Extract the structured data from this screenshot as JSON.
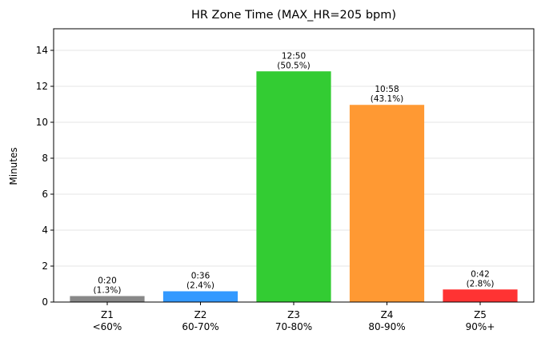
{
  "chart_data": {
    "type": "bar",
    "title": "HR Zone Time (MAX_HR=205 bpm)",
    "xlabel": "",
    "ylabel": "Minutes",
    "ylim": [
      0,
      15.2
    ],
    "yticks": [
      0,
      2,
      4,
      6,
      8,
      10,
      12,
      14
    ],
    "grid": "horizontal",
    "categories": [
      {
        "name": "Z1",
        "range": "<60%"
      },
      {
        "name": "Z2",
        "range": "60-70%"
      },
      {
        "name": "Z3",
        "range": "70-80%"
      },
      {
        "name": "Z4",
        "range": "80-90%"
      },
      {
        "name": "Z5",
        "range": "90%+"
      }
    ],
    "values": [
      0.333,
      0.6,
      12.833,
      10.967,
      0.7
    ],
    "labels": [
      {
        "time": "0:20",
        "pct": "(1.3%)"
      },
      {
        "time": "0:36",
        "pct": "(2.4%)"
      },
      {
        "time": "12:50",
        "pct": "(50.5%)"
      },
      {
        "time": "10:58",
        "pct": "(43.1%)"
      },
      {
        "time": "0:42",
        "pct": "(2.8%)"
      }
    ],
    "colors": [
      "#888888",
      "#3399ff",
      "#33cc33",
      "#ff9933",
      "#ff3333"
    ]
  }
}
